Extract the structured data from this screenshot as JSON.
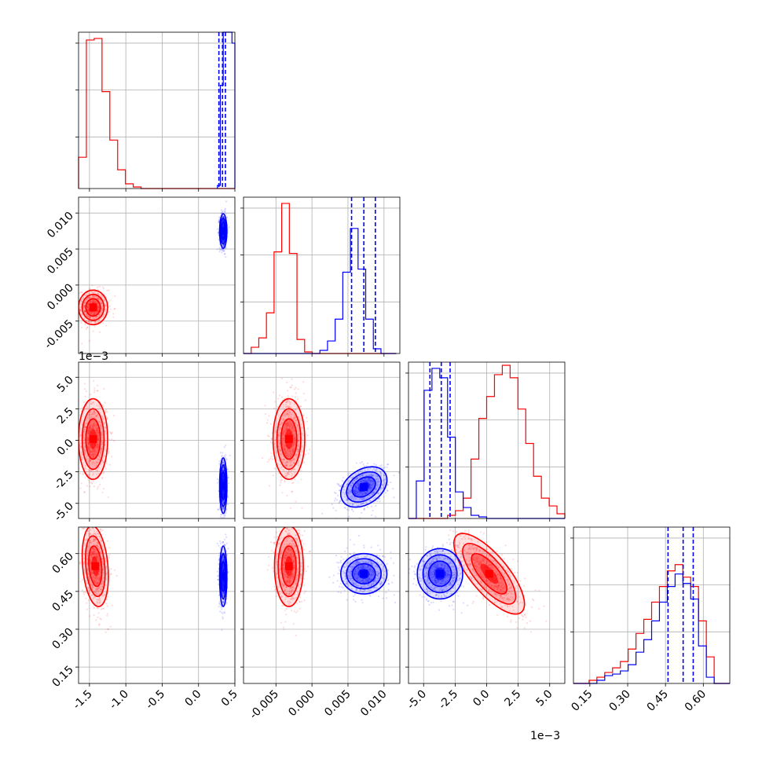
{
  "chart_data": {
    "type": "corner",
    "grid": true,
    "series": [
      {
        "color": "#ff0000"
      },
      {
        "color": "#0000ff"
      }
    ],
    "params": [
      {
        "lim": [
          -1.65,
          0.5
        ],
        "ticks": [
          "-1.5",
          "-1.0",
          "-0.5",
          "0.0",
          "0.5"
        ],
        "tick_values": [
          -1.5,
          -1.0,
          -0.5,
          0.0,
          0.5
        ]
      },
      {
        "lim": [
          -0.0095,
          0.0122
        ],
        "ticks": [
          "-0.005",
          "0.000",
          "0.005",
          "0.010"
        ],
        "tick_values": [
          -0.005,
          0.0,
          0.005,
          0.01
        ],
        "offset": ""
      },
      {
        "lim": [
          -0.0062,
          0.0062
        ],
        "ticks": [
          "-5.0",
          "-2.5",
          "0.0",
          "2.5",
          "5.0"
        ],
        "tick_values": [
          -0.005,
          -0.0025,
          0.0,
          0.0025,
          0.005
        ],
        "offset": "1e−3"
      },
      {
        "lim": [
          0.085,
          0.705
        ],
        "ticks": [
          "0.15",
          "0.30",
          "0.45",
          "0.60"
        ],
        "tick_values": [
          0.15,
          0.3,
          0.45,
          0.6
        ]
      }
    ],
    "histograms": [
      {
        "param": 0,
        "red": {
          "edges_start": -1.65,
          "bin_width": 0.1075,
          "counts": [
            0.2,
            0.95,
            0.96,
            0.62,
            0.31,
            0.12,
            0.03,
            0.01,
            0.0,
            0.0,
            0.0,
            0.0,
            0.0,
            0.0,
            0.0,
            0.0,
            0.0,
            0.0,
            0.0,
            0.0
          ]
        },
        "blue": {
          "edges_start": 0.26,
          "bin_width": 0.04,
          "counts": [
            0.02,
            0.66,
            1.0,
            1.0,
            1.0,
            0.93
          ]
        },
        "blue_quantiles": [
          0.28,
          0.33,
          0.37
        ]
      },
      {
        "param": 1,
        "red": {
          "edges_start": -0.0095,
          "bin_width": 0.00106,
          "counts": [
            0.0,
            0.04,
            0.1,
            0.26,
            0.65,
            0.96,
            0.64,
            0.09,
            0.01,
            0.0,
            0.0,
            0.0,
            0.0,
            0.0,
            0.0,
            0.0,
            0.0,
            0.0,
            0.0,
            0.0
          ]
        },
        "blue": {
          "edges_start": -0.0095,
          "bin_width": 0.00106,
          "counts": [
            0.0,
            0.0,
            0.0,
            0.0,
            0.0,
            0.0,
            0.0,
            0.0,
            0.0,
            0.0,
            0.02,
            0.08,
            0.22,
            0.52,
            0.8,
            0.54,
            0.22,
            0.03,
            0.0,
            0.0
          ]
        },
        "blue_quantiles": [
          0.0055,
          0.0072,
          0.0088
        ]
      },
      {
        "param": 2,
        "red": {
          "edges_start": -0.0062,
          "bin_width": 0.00062,
          "counts": [
            0.0,
            0.0,
            0.0,
            0.0,
            0.0,
            0.02,
            0.05,
            0.13,
            0.38,
            0.64,
            0.78,
            0.92,
            0.98,
            0.9,
            0.7,
            0.48,
            0.27,
            0.13,
            0.08,
            0.03
          ]
        },
        "blue": {
          "edges_start": -0.0062,
          "bin_width": 0.00062,
          "counts": [
            0.0,
            0.24,
            0.82,
            0.96,
            0.9,
            0.52,
            0.17,
            0.07,
            0.02,
            0.01,
            0.0,
            0.0,
            0.0,
            0.0,
            0.0,
            0.0,
            0.0,
            0.0,
            0.0,
            0.0
          ]
        },
        "blue_quantiles": [
          -0.0045,
          -0.0036,
          -0.0029
        ]
      },
      {
        "param": 3,
        "red": {
          "edges_start": 0.085,
          "bin_width": 0.031,
          "counts": [
            0.0,
            0.0,
            0.02,
            0.04,
            0.07,
            0.1,
            0.14,
            0.22,
            0.32,
            0.41,
            0.52,
            0.62,
            0.72,
            0.76,
            0.68,
            0.62,
            0.4,
            0.17,
            0.0,
            0.0
          ]
        },
        "blue": {
          "edges_start": 0.085,
          "bin_width": 0.031,
          "counts": [
            0.0,
            0.0,
            0.0,
            0.02,
            0.05,
            0.06,
            0.08,
            0.12,
            0.2,
            0.28,
            0.4,
            0.52,
            0.62,
            0.7,
            0.64,
            0.54,
            0.24,
            0.04,
            0.0,
            0.0
          ]
        },
        "blue_quantiles": [
          0.46,
          0.52,
          0.56
        ]
      }
    ],
    "pairs": [
      {
        "row": 1,
        "col": 0,
        "red": {
          "mean": [
            -1.45,
            -0.0031
          ],
          "sd": [
            0.1,
            0.0012
          ],
          "rho": 0.0
        },
        "blue": {
          "mean": [
            0.34,
            0.0075
          ],
          "sd": [
            0.025,
            0.0012
          ],
          "rho": 0.0
        }
      },
      {
        "row": 2,
        "col": 0,
        "red": {
          "mean": [
            -1.45,
            0.0001
          ],
          "sd": [
            0.1,
            0.0016
          ],
          "rho": 0.0
        },
        "blue": {
          "mean": [
            0.34,
            -0.0036
          ],
          "sd": [
            0.025,
            0.0011
          ],
          "rho": 0.0
        }
      },
      {
        "row": 2,
        "col": 1,
        "red": {
          "mean": [
            -0.0032,
            0.0001
          ],
          "sd": [
            0.0011,
            0.0016
          ],
          "rho": 0.0
        },
        "blue": {
          "mean": [
            0.0072,
            -0.0037
          ],
          "sd": [
            0.0016,
            0.0008
          ],
          "rho": 0.35
        }
      },
      {
        "row": 3,
        "col": 0,
        "red": {
          "mean": [
            -1.42,
            0.55
          ],
          "sd": [
            0.09,
            0.08
          ],
          "rho": -0.25
        },
        "blue": {
          "mean": [
            0.34,
            0.51
          ],
          "sd": [
            0.025,
            0.06
          ],
          "rho": 0.0
        }
      },
      {
        "row": 3,
        "col": 1,
        "red": {
          "mean": [
            -0.0032,
            0.55
          ],
          "sd": [
            0.001,
            0.08
          ],
          "rho": 0.0
        },
        "blue": {
          "mean": [
            0.0072,
            0.52
          ],
          "sd": [
            0.0016,
            0.04
          ],
          "rho": 0.0
        }
      },
      {
        "row": 3,
        "col": 2,
        "red": {
          "mean": [
            0.0002,
            0.52
          ],
          "sd": [
            0.0014,
            0.08
          ],
          "rho": -0.75
        },
        "blue": {
          "mean": [
            -0.0037,
            0.52
          ],
          "sd": [
            0.0009,
            0.05
          ],
          "rho": 0.0
        }
      }
    ],
    "contour_levels": [
      0.5,
      1.0,
      1.5,
      2.0
    ]
  }
}
